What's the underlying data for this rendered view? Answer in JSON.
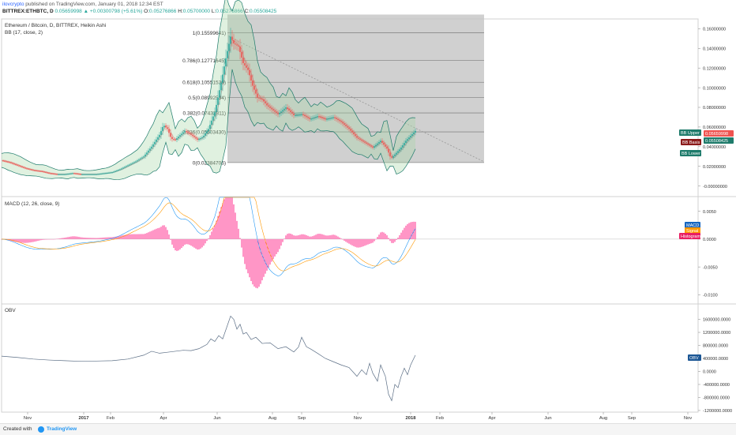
{
  "header": {
    "author": "ilovcrypto",
    "published": " published on TradingView.com, January 01, 2018 12:34 EST",
    "symbol": "BITTREX:ETHBTC, D",
    "price": "0.05659998",
    "change": "▲ +0.00300798 (+5.61%)",
    "o_label": "O:",
    "o": "0.05276866",
    "h_label": "H:",
    "h": "0.05700000",
    "l_label": "L:",
    "l": "0.05276866",
    "c_label": "C:",
    "c": "0.05508425"
  },
  "footer": {
    "created": "Created with",
    "brand": "TradingView"
  },
  "colors": {
    "up": "#26a69a",
    "down": "#ef5350",
    "bb_band": "#1e7b6b",
    "bb_fill": "#a5d6a7",
    "fib_zone": "#c8c8c8",
    "macd": "#2196f3",
    "signal": "#ff9800",
    "histogram": "#ff4fa1",
    "obv": "#5b6e85",
    "trend": "#999999"
  },
  "chart_data": [
    {
      "type": "candlestick",
      "title": "Ethereum / Bitcoin, D, BITTREX, Heikin Ashi",
      "subtitle": "BB (17, close, 2)",
      "ylim": [
        -0.01,
        0.17
      ],
      "yticks": [
        "0.16000000",
        "0.14000000",
        "0.12000000",
        "0.10000000",
        "0.08000000",
        "0.06000000",
        "0.04000000",
        "0.02000000",
        "-0.00000000"
      ],
      "x_ticks": [
        "Nov",
        "2017",
        "Feb",
        "Apr",
        "Jun",
        "Aug",
        "Sep",
        "Nov",
        "2018",
        "Feb",
        "Apr",
        "Jun",
        "Aug",
        "Sep",
        "Nov"
      ],
      "fib_levels": [
        {
          "label": "1(0.15599641)",
          "value": 0.15599641
        },
        {
          "label": "0.786(0.12771645)",
          "value": 0.12771645
        },
        {
          "label": "0.618(0.10551536)",
          "value": 0.10551536
        },
        {
          "label": "0.5(0.08992534)",
          "value": 0.08992534
        },
        {
          "label": "0.382(0.07433811)",
          "value": 0.07433811
        },
        {
          "label": "0.236(0.05503430)",
          "value": 0.0550343
        },
        {
          "label": "0(0.02384706)",
          "value": 0.02384706
        }
      ],
      "price_path": [
        [
          0,
          0.026
        ],
        [
          10,
          0.024
        ],
        [
          20,
          0.021
        ],
        [
          30,
          0.018
        ],
        [
          40,
          0.016
        ],
        [
          50,
          0.015
        ],
        [
          60,
          0.013
        ],
        [
          70,
          0.012
        ],
        [
          80,
          0.012
        ],
        [
          90,
          0.013
        ],
        [
          100,
          0.012
        ],
        [
          110,
          0.012
        ],
        [
          120,
          0.012
        ],
        [
          130,
          0.013
        ],
        [
          140,
          0.014
        ],
        [
          150,
          0.017
        ],
        [
          160,
          0.021
        ],
        [
          170,
          0.025
        ],
        [
          180,
          0.03
        ],
        [
          190,
          0.04
        ],
        [
          200,
          0.052
        ],
        [
          205,
          0.062
        ],
        [
          210,
          0.058
        ],
        [
          215,
          0.048
        ],
        [
          220,
          0.047
        ],
        [
          225,
          0.051
        ],
        [
          232,
          0.056
        ],
        [
          240,
          0.052
        ],
        [
          248,
          0.047
        ],
        [
          255,
          0.05
        ],
        [
          262,
          0.058
        ],
        [
          270,
          0.075
        ],
        [
          278,
          0.105
        ],
        [
          284,
          0.13
        ],
        [
          290,
          0.152
        ],
        [
          294,
          0.145
        ],
        [
          300,
          0.142
        ],
        [
          306,
          0.125
        ],
        [
          312,
          0.118
        ],
        [
          318,
          0.102
        ],
        [
          324,
          0.09
        ],
        [
          330,
          0.088
        ],
        [
          336,
          0.082
        ],
        [
          342,
          0.078
        ],
        [
          350,
          0.073
        ],
        [
          360,
          0.08
        ],
        [
          370,
          0.072
        ],
        [
          380,
          0.073
        ],
        [
          390,
          0.068
        ],
        [
          400,
          0.071
        ],
        [
          410,
          0.068
        ],
        [
          420,
          0.07
        ],
        [
          430,
          0.065
        ],
        [
          440,
          0.058
        ],
        [
          450,
          0.049
        ],
        [
          460,
          0.044
        ],
        [
          470,
          0.039
        ],
        [
          480,
          0.046
        ],
        [
          488,
          0.038
        ],
        [
          493,
          0.028
        ],
        [
          498,
          0.032
        ],
        [
          505,
          0.038
        ],
        [
          512,
          0.046
        ],
        [
          518,
          0.051
        ],
        [
          524,
          0.056
        ]
      ],
      "bb_upper_label": "BB Upper",
      "bb_upper_value": "0.05659998",
      "bb_basis_label": "BB Basis",
      "bb_basis_value": "0.05508425",
      "bb_lower_label": "BB Lower"
    },
    {
      "type": "line",
      "title": "MACD (12, 26, close, 9)",
      "ylim": [
        -0.0115,
        0.0075
      ],
      "yticks": [
        "0.0050",
        "0.0000",
        "-0.0050",
        "-0.0100"
      ],
      "legend": [
        "MACD",
        "Signal",
        "Histogram"
      ]
    },
    {
      "type": "line",
      "title": "OBV",
      "ylim": [
        -1250000,
        2050000
      ],
      "yticks": [
        "1600000.0000",
        "1200000.0000",
        "800000.0000",
        "400000.0000",
        "0.0000",
        "-400000.0000",
        "-800000.0000",
        "-1200000.0000"
      ],
      "obv_label": "OBV",
      "obv_path": [
        [
          0,
          470000
        ],
        [
          20,
          430000
        ],
        [
          40,
          380000
        ],
        [
          60,
          350000
        ],
        [
          80,
          330000
        ],
        [
          100,
          310000
        ],
        [
          120,
          320000
        ],
        [
          140,
          330000
        ],
        [
          160,
          380000
        ],
        [
          180,
          500000
        ],
        [
          190,
          620000
        ],
        [
          200,
          560000
        ],
        [
          210,
          590000
        ],
        [
          220,
          620000
        ],
        [
          230,
          650000
        ],
        [
          240,
          640000
        ],
        [
          250,
          700000
        ],
        [
          260,
          830000
        ],
        [
          265,
          1000000
        ],
        [
          270,
          920000
        ],
        [
          275,
          1100000
        ],
        [
          280,
          1000000
        ],
        [
          285,
          1350000
        ],
        [
          290,
          1700000
        ],
        [
          294,
          1600000
        ],
        [
          298,
          1300000
        ],
        [
          302,
          1450000
        ],
        [
          306,
          1150000
        ],
        [
          310,
          1200000
        ],
        [
          316,
          980000
        ],
        [
          322,
          1050000
        ],
        [
          330,
          860000
        ],
        [
          340,
          880000
        ],
        [
          350,
          700000
        ],
        [
          360,
          760000
        ],
        [
          370,
          600000
        ],
        [
          376,
          750000
        ],
        [
          380,
          1050000
        ],
        [
          386,
          760000
        ],
        [
          392,
          680000
        ],
        [
          400,
          560000
        ],
        [
          410,
          400000
        ],
        [
          420,
          300000
        ],
        [
          430,
          200000
        ],
        [
          440,
          120000
        ],
        [
          450,
          -150000
        ],
        [
          456,
          50000
        ],
        [
          462,
          -100000
        ],
        [
          466,
          250000
        ],
        [
          470,
          -50000
        ],
        [
          476,
          -300000
        ],
        [
          480,
          200000
        ],
        [
          486,
          -150000
        ],
        [
          490,
          -700000
        ],
        [
          494,
          -900000
        ],
        [
          498,
          -400000
        ],
        [
          502,
          -500000
        ],
        [
          506,
          -150000
        ],
        [
          510,
          100000
        ],
        [
          514,
          -100000
        ],
        [
          518,
          200000
        ],
        [
          524,
          500000
        ]
      ]
    }
  ]
}
